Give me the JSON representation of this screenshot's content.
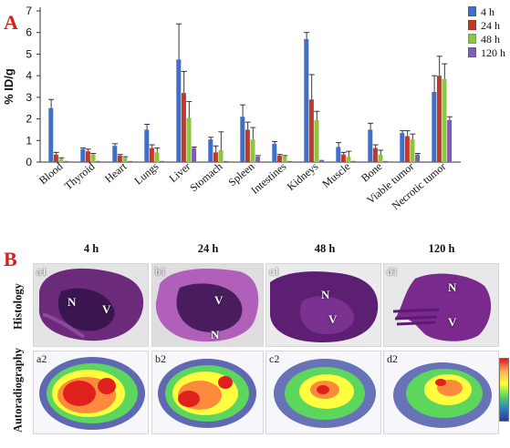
{
  "panel_a": {
    "letter": "A"
  },
  "panel_b": {
    "letter": "B"
  },
  "chart_data": {
    "type": "bar",
    "ylabel": "% ID/g",
    "ylim": [
      0,
      7
    ],
    "yticks": [
      0,
      1,
      2,
      3,
      4,
      5,
      6,
      7
    ],
    "categories": [
      "Blood",
      "Thyroid",
      "Heart",
      "Lungs",
      "Liver",
      "Stomach",
      "Spleen",
      "Intestines",
      "Kidneys",
      "Muscle",
      "Bone",
      "Viable tumor",
      "Necrotic tumor"
    ],
    "series": [
      {
        "name": "4 h",
        "color": "#3f6fc7",
        "values": [
          2.5,
          0.6,
          0.75,
          1.5,
          4.75,
          1.05,
          2.1,
          0.85,
          5.7,
          0.7,
          1.5,
          1.35,
          3.25
        ],
        "errors": [
          0.4,
          0.05,
          0.1,
          0.25,
          1.65,
          0.1,
          0.55,
          0.1,
          0.3,
          0.2,
          0.3,
          0.1,
          0.75
        ]
      },
      {
        "name": "24 h",
        "color": "#c0392b",
        "values": [
          0.35,
          0.5,
          0.3,
          0.65,
          3.2,
          0.45,
          1.5,
          0.3,
          2.9,
          0.35,
          0.65,
          1.2,
          4.0
        ],
        "errors": [
          0.1,
          0.1,
          0.05,
          0.15,
          1.0,
          0.3,
          0.35,
          0.05,
          1.15,
          0.1,
          0.15,
          0.25,
          0.9
        ]
      },
      {
        "name": "48 h",
        "color": "#8cc63f",
        "values": [
          0.15,
          0.35,
          0.2,
          0.45,
          2.05,
          0.55,
          1.05,
          0.25,
          1.95,
          0.25,
          0.35,
          1.05,
          3.85
        ],
        "errors": [
          0.05,
          0.05,
          0.05,
          0.2,
          0.75,
          0.85,
          0.55,
          0.05,
          0.4,
          0.25,
          0.2,
          0.25,
          0.7
        ]
      },
      {
        "name": "120 h",
        "color": "#7f5fb3",
        "values": [
          0.05,
          0.05,
          0.05,
          0.05,
          0.65,
          0.05,
          0.25,
          0.05,
          0.1,
          0.05,
          0.05,
          0.35,
          1.95
        ],
        "errors": [
          0.02,
          0.02,
          0.02,
          0.02,
          0.05,
          0.02,
          0.05,
          0.02,
          0.02,
          0.02,
          0.02,
          0.05,
          0.15
        ]
      }
    ]
  },
  "timepoints": [
    "4 h",
    "24 h",
    "48 h",
    "120 h"
  ],
  "rows": {
    "histology": "Histology",
    "autoradiography": "Autoradiography"
  },
  "histology_tags": [
    "a1",
    "b1",
    "c1",
    "d1"
  ],
  "autorad_tags": [
    "a2",
    "b2",
    "c2",
    "d2"
  ],
  "region_marks": {
    "necrotic": "N",
    "viable": "V"
  }
}
